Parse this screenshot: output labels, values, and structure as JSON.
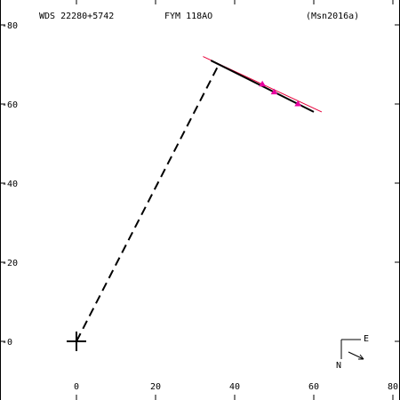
{
  "chart_data": {
    "type": "scatter",
    "header": {
      "left": "WDS 22280+5742",
      "center": "FYM 118AO",
      "right": "(Msn2016a)"
    },
    "xlim": [
      -20,
      80
    ],
    "ylim": [
      -15,
      82
    ],
    "x_ticks": [
      0,
      20,
      40,
      60,
      80
    ],
    "y_ticks": [
      0,
      20,
      40,
      60,
      80
    ],
    "primary": {
      "x": 0,
      "y": 0
    },
    "orbit_line": {
      "points": [
        [
          32,
          72
        ],
        [
          62,
          58
        ]
      ],
      "color": "#e8003a"
    },
    "fit_line": {
      "points": [
        [
          34,
          71
        ],
        [
          60,
          58
        ]
      ],
      "color": "#000000"
    },
    "connector": {
      "from": [
        0,
        0
      ],
      "to": [
        36,
        70
      ],
      "style": "dashed"
    },
    "observations": {
      "color": "#e800a0",
      "points": [
        [
          47,
          65
        ],
        [
          50,
          63
        ],
        [
          56,
          60
        ]
      ]
    },
    "compass": {
      "east_label": "E",
      "north_label": "N"
    }
  }
}
